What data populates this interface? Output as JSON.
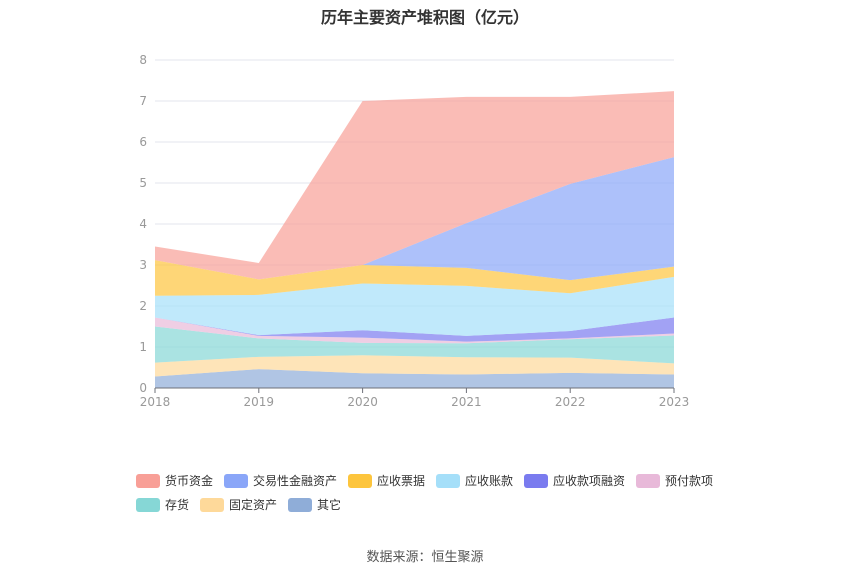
{
  "title": "历年主要资产堆积图（亿元）",
  "source": "数据来源：恒生聚源",
  "chart_data": {
    "type": "area",
    "stacked": true,
    "title": "历年主要资产堆积图（亿元）",
    "xlabel": "",
    "ylabel": "",
    "categories": [
      "2018",
      "2019",
      "2020",
      "2021",
      "2022",
      "2023"
    ],
    "ylim": [
      0,
      8
    ],
    "yticks": [
      "0",
      "1",
      "2",
      "3",
      "4",
      "5",
      "6",
      "7",
      "8"
    ],
    "grid": true,
    "legend_position": "bottom",
    "series": [
      {
        "name": "其它",
        "color": "#8fadd8",
        "values": [
          0.28,
          0.46,
          0.36,
          0.33,
          0.37,
          0.33
        ]
      },
      {
        "name": "固定资产",
        "color": "#fed99a",
        "values": [
          0.34,
          0.3,
          0.44,
          0.42,
          0.37,
          0.27
        ]
      },
      {
        "name": "存货",
        "color": "#86d7d6",
        "values": [
          0.88,
          0.45,
          0.3,
          0.34,
          0.45,
          0.68
        ]
      },
      {
        "name": "预付款项",
        "color": "#e8b9d9",
        "values": [
          0.22,
          0.06,
          0.13,
          0.04,
          0.02,
          0.05
        ]
      },
      {
        "name": "应收款项融资",
        "color": "#7a7bef",
        "values": [
          0,
          0.02,
          0.18,
          0.14,
          0.18,
          0.39
        ]
      },
      {
        "name": "应收账款",
        "color": "#a5dff9",
        "values": [
          0.53,
          0.98,
          1.14,
          1.22,
          0.92,
          0.99
        ]
      },
      {
        "name": "应收票据",
        "color": "#fdc53d",
        "values": [
          0.87,
          0.38,
          0.45,
          0.44,
          0.32,
          0.25
        ]
      },
      {
        "name": "交易性金融资产",
        "color": "#8aa6f8",
        "values": [
          0,
          0,
          0,
          1.09,
          2.35,
          2.67
        ]
      },
      {
        "name": "货币资金",
        "color": "#f89f97",
        "values": [
          0.33,
          0.4,
          4.0,
          3.08,
          2.12,
          1.61
        ]
      }
    ],
    "legend_order": [
      "货币资金",
      "交易性金融资产",
      "应收票据",
      "应收账款",
      "应收款项融资",
      "预付款项",
      "存货",
      "固定资产",
      "其它"
    ]
  }
}
